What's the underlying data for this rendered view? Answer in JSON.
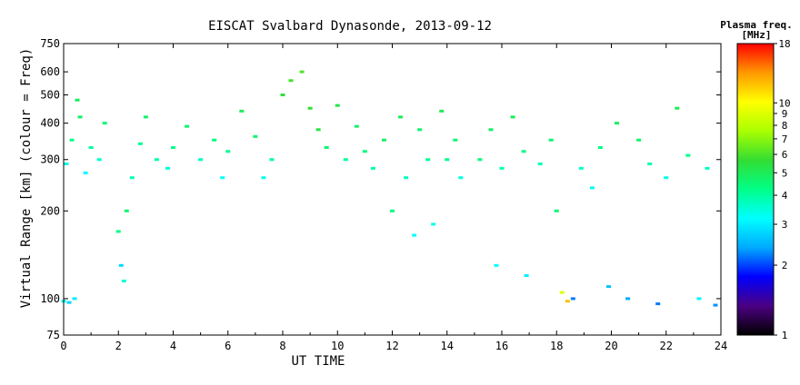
{
  "chart_data": {
    "type": "scatter",
    "title": "EISCAT Svalbard Dynasonde, 2013-09-12",
    "xlabel": "UT TIME",
    "ylabel": "Virtual Range [km] (colour = Freq)",
    "xlim": [
      0,
      24
    ],
    "ylim": [
      75,
      750
    ],
    "y_scale": "log",
    "x_ticks": [
      "0",
      "2",
      "4",
      "6",
      "8",
      "10",
      "12",
      "14",
      "16",
      "18",
      "20",
      "22",
      "24"
    ],
    "y_ticks": [
      "75",
      "100",
      "200",
      "300",
      "400",
      "500",
      "600",
      "750"
    ],
    "colorbar": {
      "label_line1": "Plasma freq.",
      "label_line2": "[MHz]",
      "range": [
        1,
        18
      ],
      "scale": "log",
      "ticks": [
        "1",
        "2",
        "3",
        "4",
        "5",
        "6",
        "7",
        "8",
        "9",
        "10",
        "18"
      ],
      "colors": [
        "#000000",
        "#4b0082",
        "#0000ff",
        "#00aaff",
        "#00ffff",
        "#00ff88",
        "#33dd33",
        "#aaff00",
        "#ffff00",
        "#ff9900",
        "#ff0000"
      ]
    },
    "series": [
      {
        "points": [
          [
            0.0,
            98,
            3.2
          ],
          [
            0.2,
            97,
            2.8
          ],
          [
            0.4,
            100,
            3.0
          ],
          [
            0.1,
            290,
            3.4
          ],
          [
            0.3,
            350,
            4.2
          ],
          [
            0.6,
            420,
            4.8
          ],
          [
            0.8,
            270,
            3.1
          ],
          [
            0.5,
            480,
            4.9
          ],
          [
            1.0,
            330,
            4.0
          ],
          [
            1.3,
            300,
            3.6
          ],
          [
            1.5,
            400,
            4.5
          ],
          [
            2.0,
            170,
            4.3
          ],
          [
            2.1,
            130,
            2.8
          ],
          [
            2.2,
            115,
            3.5
          ],
          [
            2.3,
            200,
            4.6
          ],
          [
            2.5,
            260,
            3.8
          ],
          [
            2.8,
            340,
            4.1
          ],
          [
            3.0,
            420,
            4.7
          ],
          [
            3.4,
            300,
            3.9
          ],
          [
            3.8,
            280,
            3.5
          ],
          [
            4.0,
            330,
            4.3
          ],
          [
            4.5,
            390,
            4.6
          ],
          [
            5.0,
            300,
            3.7
          ],
          [
            5.5,
            350,
            4.4
          ],
          [
            5.8,
            260,
            3.2
          ],
          [
            6.0,
            320,
            4.2
          ],
          [
            6.5,
            440,
            4.9
          ],
          [
            7.0,
            360,
            4.6
          ],
          [
            7.3,
            260,
            3.3
          ],
          [
            7.6,
            300,
            4.0
          ],
          [
            8.0,
            500,
            5.5
          ],
          [
            8.3,
            560,
            5.9
          ],
          [
            8.7,
            600,
            6.1
          ],
          [
            9.0,
            450,
            5.6
          ],
          [
            9.3,
            380,
            5.3
          ],
          [
            9.6,
            330,
            4.6
          ],
          [
            10.0,
            460,
            5.2
          ],
          [
            10.3,
            300,
            4.1
          ],
          [
            10.7,
            390,
            4.7
          ],
          [
            11.0,
            320,
            4.4
          ],
          [
            11.3,
            280,
            3.9
          ],
          [
            11.7,
            350,
            4.8
          ],
          [
            12.0,
            200,
            4.4
          ],
          [
            12.3,
            420,
            5.0
          ],
          [
            12.5,
            260,
            3.7
          ],
          [
            12.8,
            165,
            3.2
          ],
          [
            13.0,
            380,
            4.6
          ],
          [
            13.3,
            300,
            4.1
          ],
          [
            13.5,
            180,
            3.3
          ],
          [
            13.8,
            440,
            5.0
          ],
          [
            14.0,
            300,
            4.2
          ],
          [
            14.3,
            350,
            4.5
          ],
          [
            14.5,
            260,
            3.4
          ],
          [
            15.2,
            300,
            4.4
          ],
          [
            15.6,
            380,
            4.8
          ],
          [
            15.8,
            130,
            3.2
          ],
          [
            16.0,
            280,
            3.8
          ],
          [
            16.4,
            420,
            5.0
          ],
          [
            16.8,
            320,
            4.3
          ],
          [
            16.9,
            120,
            3.0
          ],
          [
            17.4,
            290,
            3.8
          ],
          [
            17.8,
            350,
            4.5
          ],
          [
            18.0,
            200,
            4.6
          ],
          [
            18.2,
            105,
            9.0
          ],
          [
            18.4,
            98,
            12.0
          ],
          [
            18.6,
            100,
            2.2
          ],
          [
            18.9,
            280,
            3.6
          ],
          [
            19.3,
            240,
            3.3
          ],
          [
            19.6,
            330,
            4.3
          ],
          [
            19.9,
            110,
            2.6
          ],
          [
            20.2,
            400,
            4.9
          ],
          [
            20.6,
            100,
            2.4
          ],
          [
            21.0,
            350,
            4.6
          ],
          [
            21.4,
            290,
            3.9
          ],
          [
            21.7,
            96,
            2.2
          ],
          [
            22.0,
            260,
            3.4
          ],
          [
            22.4,
            450,
            5.0
          ],
          [
            22.8,
            310,
            4.2
          ],
          [
            23.2,
            100,
            3.1
          ],
          [
            23.5,
            280,
            3.7
          ],
          [
            23.8,
            95,
            2.3
          ]
        ]
      }
    ]
  }
}
